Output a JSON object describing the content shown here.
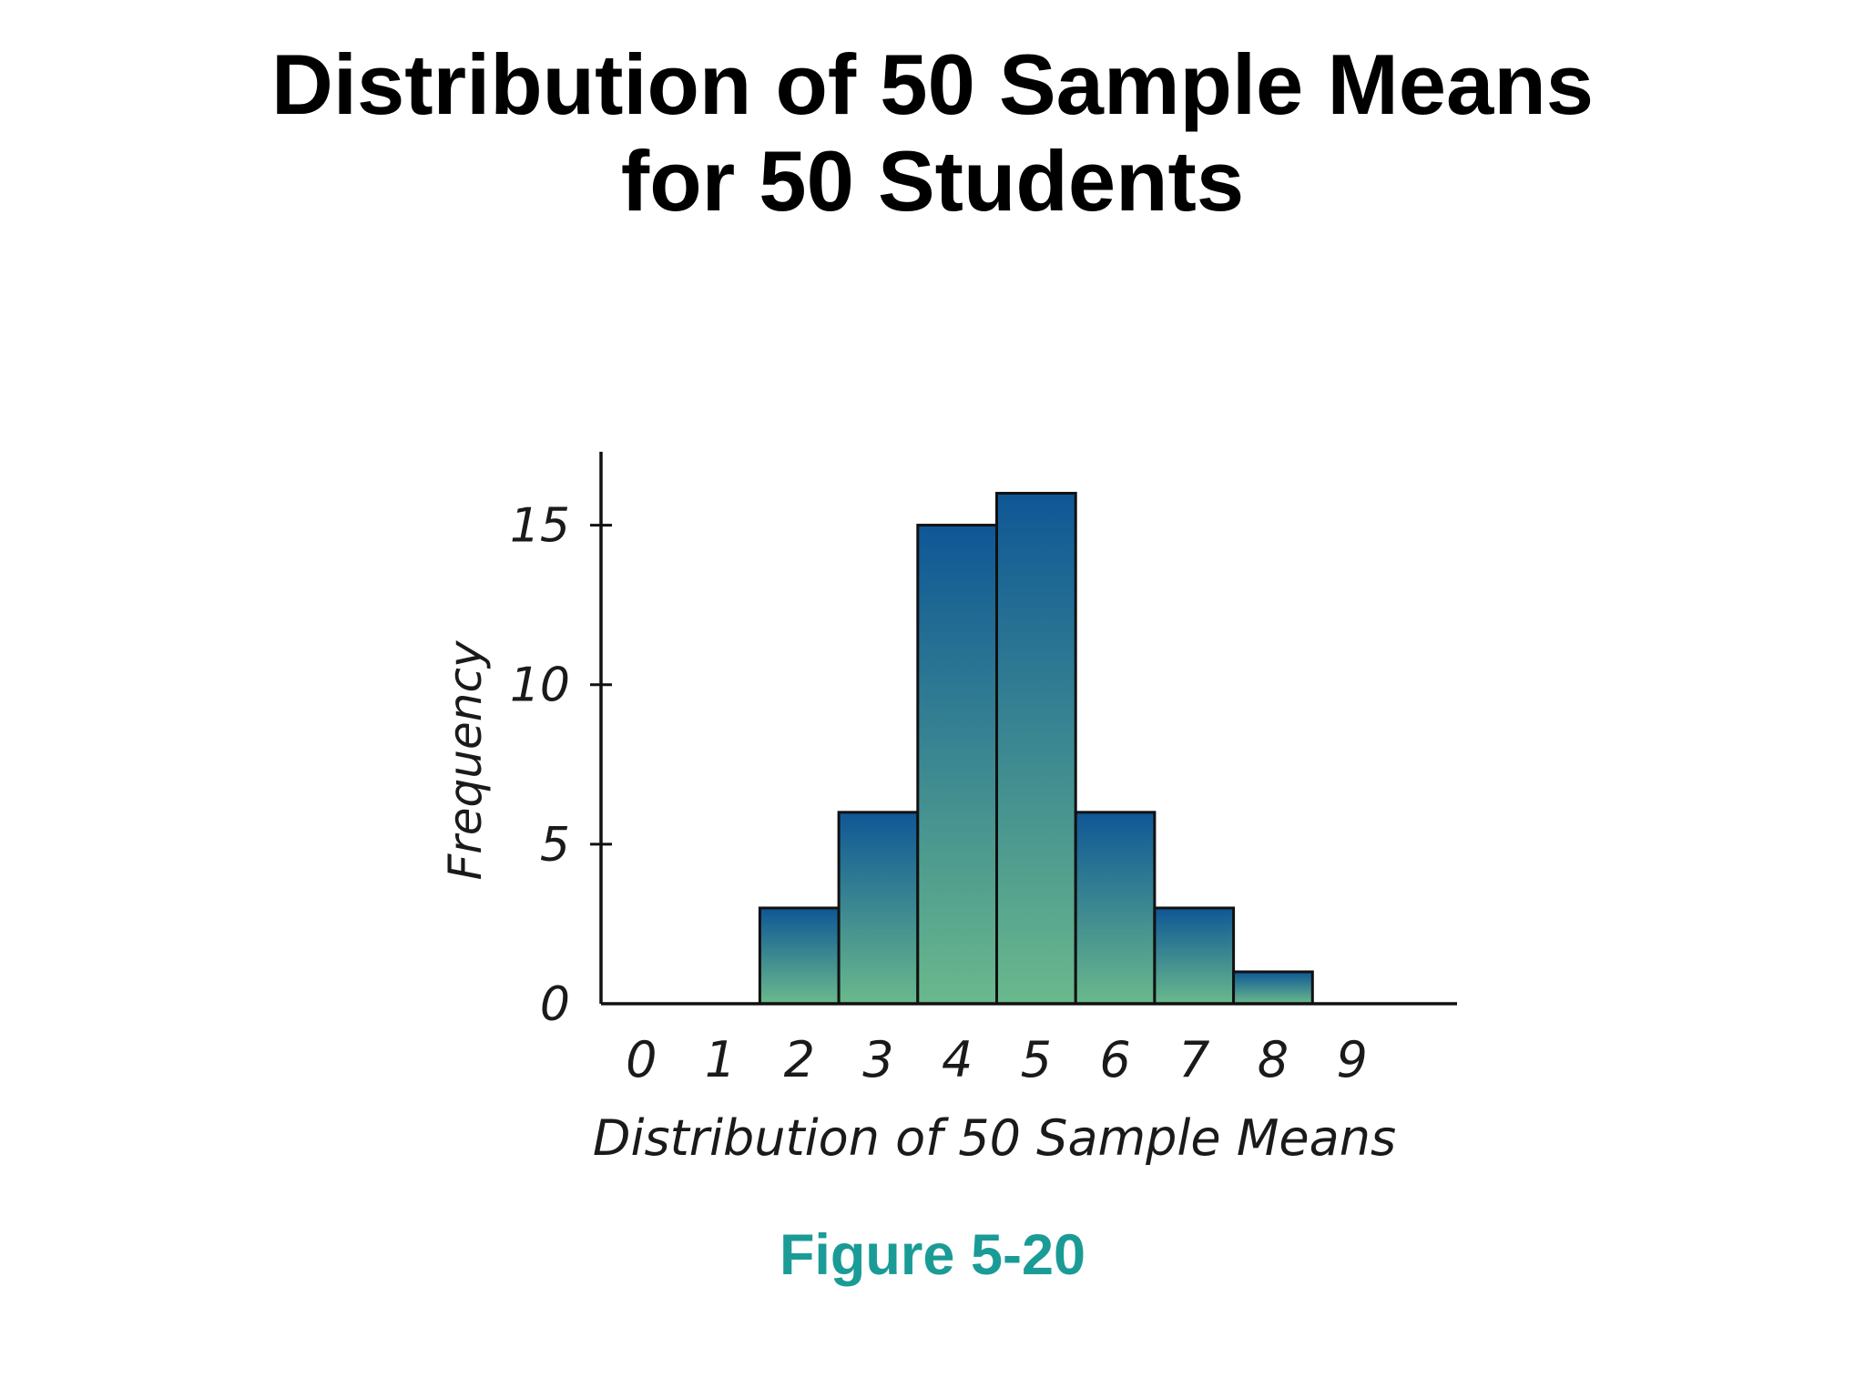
{
  "slide": {
    "title_line1": "Distribution of 50 Sample Means",
    "title_line2": "for 50 Students",
    "caption": "Figure 5-20"
  },
  "colors": {
    "bar_top": "#0e5796",
    "bar_bottom": "#6ab98c",
    "bar_outline": "#111111",
    "axis": "#111111",
    "caption": "#1a9b96"
  },
  "chart_data": {
    "type": "bar",
    "categories": [
      "0",
      "1",
      "2",
      "3",
      "4",
      "5",
      "6",
      "7",
      "8",
      "9"
    ],
    "values": [
      0,
      0,
      3,
      6,
      15,
      16,
      6,
      3,
      1,
      0
    ],
    "title": "",
    "xlabel": "Distribution of 50 Sample Means",
    "ylabel": "Frequency",
    "yticks": [
      "0",
      "5",
      "10",
      "15"
    ],
    "ylim": [
      0,
      17.3
    ],
    "grid": false,
    "legend": "none"
  }
}
